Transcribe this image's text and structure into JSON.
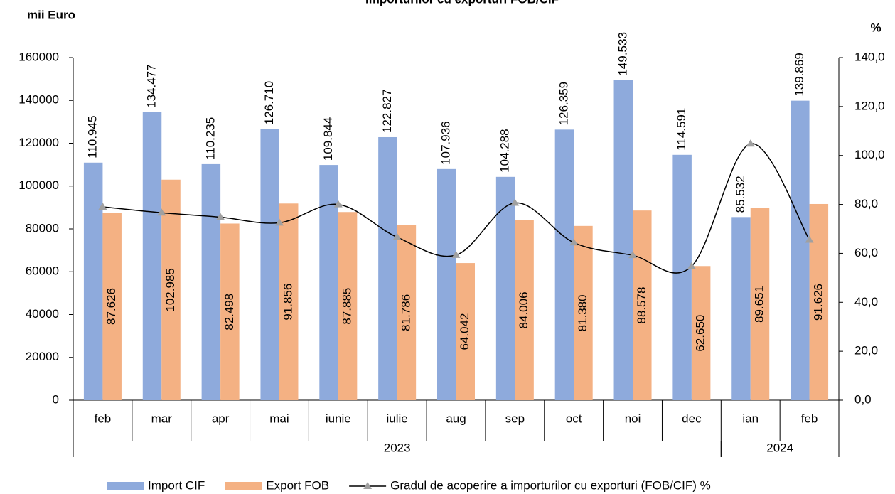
{
  "chart_data": {
    "type": "bar",
    "title": "Importurilor cu exporturi FOB/CIF",
    "y_label": "mii Euro",
    "y2_label": "%",
    "categories": [
      "feb",
      "mar",
      "apr",
      "mai",
      "iunie",
      "iulie",
      "aug",
      "sep",
      "oct",
      "noi",
      "dec",
      "ian",
      "feb"
    ],
    "groups": [
      {
        "label": "2023",
        "count": 11
      },
      {
        "label": "2024",
        "count": 2
      }
    ],
    "series": [
      {
        "name": "Import CIF",
        "color": "#8eaadc",
        "type": "bar",
        "values": [
          110945,
          134477,
          110235,
          126710,
          109844,
          122827,
          107936,
          104288,
          126359,
          149533,
          114591,
          85532,
          139869
        ],
        "value_labels": [
          "110.945",
          "134.477",
          "110.235",
          "126.710",
          "109.844",
          "122.827",
          "107.936",
          "104.288",
          "126.359",
          "149.533",
          "114.591",
          "85.532",
          "139.869"
        ]
      },
      {
        "name": "Export FOB",
        "color": "#f4b183",
        "type": "bar",
        "values": [
          87626,
          102985,
          82498,
          91856,
          87885,
          81786,
          64042,
          84006,
          81380,
          88578,
          62650,
          89651,
          91626
        ],
        "value_labels": [
          "87.626",
          "102.985",
          "82.498",
          "91.856",
          "87.885",
          "81.786",
          "64.042",
          "84.006",
          "81.380",
          "88.578",
          "62.650",
          "89.651",
          "91.626"
        ]
      },
      {
        "name": "Gradul de acoperire a importurilor cu exporturi (FOB/CIF) %",
        "color": "#000000",
        "marker_color": "#a0a0a0",
        "type": "line",
        "axis": "y2",
        "values": [
          79.0,
          76.6,
          74.8,
          72.5,
          80.0,
          66.6,
          59.3,
          80.6,
          64.4,
          59.2,
          54.7,
          104.8,
          65.5
        ]
      }
    ],
    "ylim": [
      0,
      160000
    ],
    "yticks": [
      0,
      20000,
      40000,
      60000,
      80000,
      100000,
      120000,
      140000,
      160000
    ],
    "y2lim": [
      0,
      140
    ],
    "y2ticks": [
      {
        "value": 0,
        "label": "0,0"
      },
      {
        "value": 20,
        "label": "20,0"
      },
      {
        "value": 40,
        "label": "40,0"
      },
      {
        "value": 60,
        "label": "60,0"
      },
      {
        "value": 80,
        "label": "80,0"
      },
      {
        "value": 100,
        "label": "100,0"
      },
      {
        "value": 120,
        "label": "120,0"
      },
      {
        "value": 140,
        "label": "140,0"
      }
    ],
    "legend": "bottom"
  }
}
